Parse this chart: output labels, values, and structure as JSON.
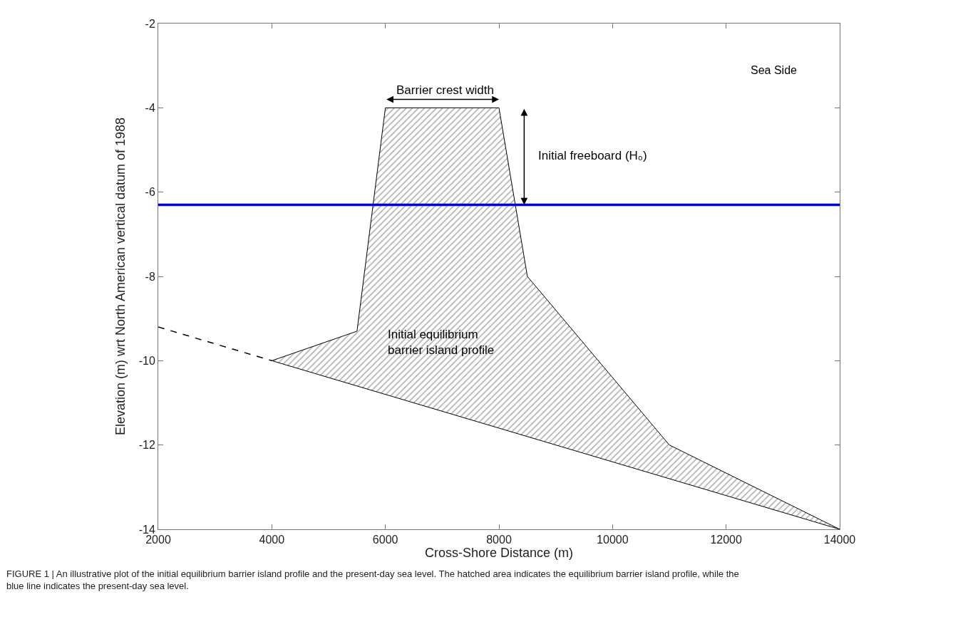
{
  "chart_data": {
    "type": "area",
    "xlabel": "Cross-Shore Distance (m)",
    "ylabel": "Elevation (m) wrt North American vertical datum of 1988",
    "xlim": [
      2000,
      14000
    ],
    "xticks": [
      2000,
      4000,
      6000,
      8000,
      10000,
      12000,
      14000
    ],
    "ylim": [
      -14,
      -2
    ],
    "yticks": [
      -14,
      -12,
      -10,
      -8,
      -6,
      -4,
      -2
    ],
    "series": [
      {
        "color": "#000000",
        "x": [
          4000,
          5500,
          6000,
          8000,
          8500,
          11000,
          14000,
          4000
        ],
        "values": [
          -10,
          -9.3,
          -4,
          -4,
          -8,
          -12,
          -14,
          -10
        ]
      },
      {
        "type": "line",
        "color": "#000000",
        "line_style": "dashed",
        "x": [
          2000,
          4000
        ],
        "values": [
          -9.2,
          -10
        ]
      }
    ],
    "ref_lines": [
      {
        "axis": "y",
        "value": -6.3,
        "color": "#0000cc"
      }
    ],
    "annotations": [
      "Barrier crest width",
      "Initial freeboard (H₀)",
      "Initial equilibrium\nbarrier island profile",
      "Sea Side",
      "FIGURE 1 | An illustrative plot of the initial equilibrium barrier island profile and the present-day sea level. The hatched area indicates the equilibrium barrier island profile, while the blue line indicates the present-day sea level."
    ]
  }
}
